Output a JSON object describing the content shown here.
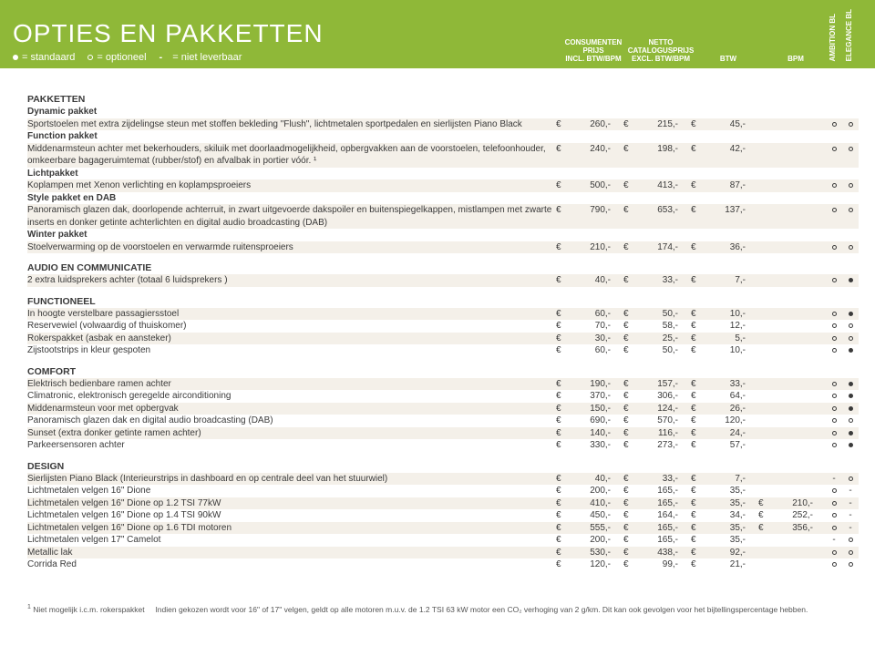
{
  "header": {
    "title": "OPTIES EN PAKKETTEN",
    "legend_standard": "= standaard",
    "legend_optional": "= optioneel",
    "legend_na": "= niet leverbaar",
    "col_consumer_l1": "CONSUMENTEN",
    "col_consumer_l2": "PRIJS",
    "col_consumer_l3": "INCL. BTW/BPM",
    "col_netto_l1": "NETTO",
    "col_netto_l2": "CATALOGUSPRIJS",
    "col_netto_l3": "EXCL. BTW/BPM",
    "col_btw": "BTW",
    "col_bpm": "BPM",
    "col_amb": "AMBITION BL",
    "col_ele": "ELEGANCE BL"
  },
  "sections": [
    {
      "title": "PAKKETTEN",
      "rows": [
        {
          "sub": "Dynamic pakket"
        },
        {
          "desc": "Sportstoelen met extra zijdelingse steun met stoffen bekleding \"Flush\", lichtmetalen sportpedalen en sierlijsten Piano Black",
          "p": [
            "260,-",
            "215,-",
            "45,-",
            ""
          ],
          "av": [
            "o",
            "o"
          ],
          "s": true
        },
        {
          "sub": "Function pakket"
        },
        {
          "desc": "Middenarmsteun achter met bekerhouders, skiluik met doorlaadmogelijkheid, opbergvakken aan de voorstoelen, telefoonhouder, omkeerbare bagageruimtemat (rubber/stof) en afvalbak in portier vóór. ¹",
          "p": [
            "240,-",
            "198,-",
            "42,-",
            ""
          ],
          "av": [
            "o",
            "o"
          ],
          "s": true
        },
        {
          "sub": "Lichtpakket"
        },
        {
          "desc": "Koplampen met Xenon verlichting en koplampsproeiers",
          "p": [
            "500,-",
            "413,-",
            "87,-",
            ""
          ],
          "av": [
            "o",
            "o"
          ],
          "s": true
        },
        {
          "sub": "Style pakket en DAB"
        },
        {
          "desc": "Panoramisch glazen dak, doorlopende achterruit, in zwart uitgevoerde dakspoiler en buitenspiegelkappen, mistlampen met zwarte inserts en donker getinte achterlichten en digital audio broadcasting (DAB)",
          "p": [
            "790,-",
            "653,-",
            "137,-",
            ""
          ],
          "av": [
            "o",
            "o"
          ],
          "s": true
        },
        {
          "sub": "Winter pakket"
        },
        {
          "desc": "Stoelverwarming op de voorstoelen en verwarmde ruitensproeiers",
          "p": [
            "210,-",
            "174,-",
            "36,-",
            ""
          ],
          "av": [
            "o",
            "o"
          ],
          "s": true
        }
      ]
    },
    {
      "title": "AUDIO EN COMMUNICATIE",
      "rows": [
        {
          "desc": "2 extra luidsprekers achter (totaal 6 luidsprekers )",
          "p": [
            "40,-",
            "33,-",
            "7,-",
            ""
          ],
          "av": [
            "o",
            "f"
          ],
          "s": true
        }
      ]
    },
    {
      "title": "FUNCTIONEEL",
      "rows": [
        {
          "desc": "In hoogte verstelbare passagiersstoel",
          "p": [
            "60,-",
            "50,-",
            "10,-",
            ""
          ],
          "av": [
            "o",
            "f"
          ],
          "s": true
        },
        {
          "desc": "Reservewiel (volwaardig of thuiskomer)",
          "p": [
            "70,-",
            "58,-",
            "12,-",
            ""
          ],
          "av": [
            "o",
            "o"
          ]
        },
        {
          "desc": "Rokerspakket (asbak en aansteker)",
          "p": [
            "30,-",
            "25,-",
            "5,-",
            ""
          ],
          "av": [
            "o",
            "o"
          ],
          "s": true
        },
        {
          "desc": "Zijstootstrips in kleur gespoten",
          "p": [
            "60,-",
            "50,-",
            "10,-",
            ""
          ],
          "av": [
            "o",
            "f"
          ]
        }
      ]
    },
    {
      "title": "COMFORT",
      "rows": [
        {
          "desc": "Elektrisch bedienbare ramen achter",
          "p": [
            "190,-",
            "157,-",
            "33,-",
            ""
          ],
          "av": [
            "o",
            "f"
          ],
          "s": true
        },
        {
          "desc": "Climatronic, elektronisch geregelde airconditioning",
          "p": [
            "370,-",
            "306,-",
            "64,-",
            ""
          ],
          "av": [
            "o",
            "f"
          ]
        },
        {
          "desc": "Middenarmsteun voor met opbergvak",
          "p": [
            "150,-",
            "124,-",
            "26,-",
            ""
          ],
          "av": [
            "o",
            "f"
          ],
          "s": true
        },
        {
          "desc": "Panoramisch glazen dak en digital audio broadcasting (DAB)",
          "p": [
            "690,-",
            "570,-",
            "120,-",
            ""
          ],
          "av": [
            "o",
            "o"
          ]
        },
        {
          "desc": "Sunset (extra donker getinte ramen achter)",
          "p": [
            "140,-",
            "116,-",
            "24,-",
            ""
          ],
          "av": [
            "o",
            "f"
          ],
          "s": true
        },
        {
          "desc": "Parkeersensoren achter",
          "p": [
            "330,-",
            "273,-",
            "57,-",
            ""
          ],
          "av": [
            "o",
            "f"
          ]
        }
      ]
    },
    {
      "title": "DESIGN",
      "rows": [
        {
          "desc": "Sierlijsten Piano Black (Interieurstrips in dashboard en op centrale deel van het stuurwiel)",
          "p": [
            "40,-",
            "33,-",
            "7,-",
            ""
          ],
          "av": [
            "-",
            "o"
          ],
          "s": true
        },
        {
          "desc": "Lichtmetalen velgen 16\" Dione",
          "p": [
            "200,-",
            "165,-",
            "35,-",
            ""
          ],
          "av": [
            "o",
            "-"
          ]
        },
        {
          "desc": "Lichtmetalen velgen 16\" Dione op 1.2 TSI 77kW",
          "p": [
            "410,-",
            "165,-",
            "35,-",
            "210,-"
          ],
          "av": [
            "o",
            "-"
          ],
          "s": true
        },
        {
          "desc": "Lichtmetalen velgen 16\" Dione op 1.4 TSI 90kW",
          "p": [
            "450,-",
            "164,-",
            "34,-",
            "252,-"
          ],
          "av": [
            "o",
            "-"
          ]
        },
        {
          "desc": "Lichtmetalen velgen 16\" Dione op 1.6 TDI motoren",
          "p": [
            "555,-",
            "165,-",
            "35,-",
            "356,-"
          ],
          "av": [
            "o",
            "-"
          ],
          "s": true
        },
        {
          "desc": "Lichtmetalen velgen 17\" Camelot",
          "p": [
            "200,-",
            "165,-",
            "35,-",
            ""
          ],
          "av": [
            "-",
            "o"
          ]
        },
        {
          "desc": "Metallic lak",
          "p": [
            "530,-",
            "438,-",
            "92,-",
            ""
          ],
          "av": [
            "o",
            "o"
          ],
          "s": true
        },
        {
          "desc": "Corrida Red",
          "p": [
            "120,-",
            "99,-",
            "21,-",
            ""
          ],
          "av": [
            "o",
            "o"
          ]
        }
      ]
    }
  ],
  "footnote": {
    "n1": "Niet mogelijk i.c.m. rokerspakket",
    "n2": "Indien gekozen wordt voor 16\" of 17\" velgen, geldt op alle motoren m.u.v. de 1.2 TSI 63 kW motor een CO₂ verhoging van 2 g/km. Dit kan ook gevolgen voor het bijtellingspercentage hebben."
  }
}
